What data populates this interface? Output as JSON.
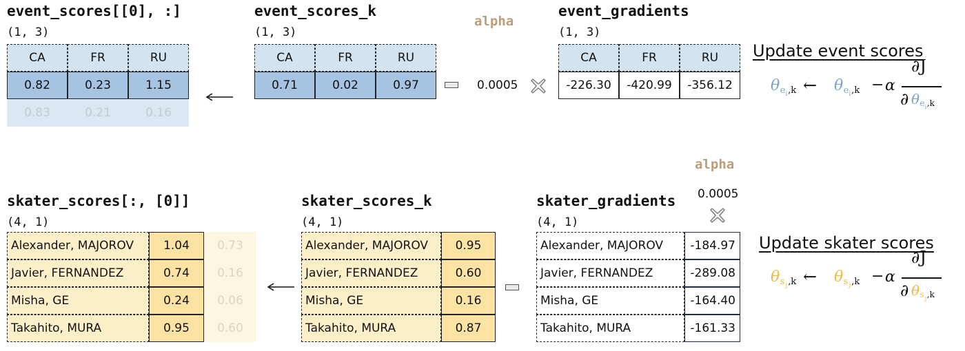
{
  "top": {
    "left": {
      "title": "event_scores[[0], :]",
      "shape": "(1, 3)",
      "headers": [
        "CA",
        "FR",
        "RU"
      ],
      "values": [
        "0.82",
        "0.23",
        "1.15"
      ],
      "prev_values": [
        "0.83",
        "0.21",
        "0.16"
      ]
    },
    "mid": {
      "title": "event_scores_k",
      "shape": "(1, 3)",
      "headers": [
        "CA",
        "FR",
        "RU"
      ],
      "values": [
        "0.71",
        "0.02",
        "0.97"
      ]
    },
    "alpha_label": "alpha",
    "alpha_value": "0.0005",
    "right": {
      "title": "event_gradients",
      "shape": "(1, 3)",
      "headers": [
        "CA",
        "FR",
        "RU"
      ],
      "values": [
        "-226.30",
        "-420.99",
        "-356.12"
      ]
    },
    "heading": "Update event scores",
    "sub": "e",
    "sub_i": "i"
  },
  "bottom": {
    "left": {
      "title": "skater_scores[:, [0]]",
      "shape": "(4, 1)",
      "names": [
        "Alexander, MAJOROV",
        "Javier, FERNANDEZ",
        "Misha, GE",
        "Takahito, MURA"
      ],
      "values": [
        "1.04",
        "0.74",
        "0.24",
        "0.95"
      ],
      "prev_values": [
        "0.73",
        "0.16",
        "0.06",
        "0.60"
      ]
    },
    "mid": {
      "title": "skater_scores_k",
      "shape": "(4, 1)",
      "names": [
        "Alexander, MAJOROV",
        "Javier, FERNANDEZ",
        "Misha, GE",
        "Takahito, MURA"
      ],
      "values": [
        "0.95",
        "0.60",
        "0.16",
        "0.87"
      ]
    },
    "alpha_label": "alpha",
    "alpha_value": "0.0005",
    "right": {
      "title": "skater_gradients",
      "shape": "(4, 1)",
      "names": [
        "Alexander, MAJOROV",
        "Javier, FERNANDEZ",
        "Misha, GE",
        "Takahito, MURA"
      ],
      "values": [
        "-184.97",
        "-289.08",
        "-164.40",
        "-161.33"
      ]
    },
    "heading": "Update skater scores",
    "sub": "s",
    "sub_i": "j"
  },
  "formula": {
    "theta": "θ",
    "k": ",k",
    "arrow": "←",
    "minus": "−",
    "alpha": "α",
    "partial_J": "∂J",
    "partial": "∂"
  },
  "colors": {
    "event_header": "#d4e3f0",
    "event_value": "#a6c4e2",
    "event_faded": "#dbe7f3",
    "skater_light": "#fdf0c8",
    "skater_value": "#fce3a3",
    "skater_faded": "#fdf6e0",
    "blue_accent": "#7da3c8",
    "yellow_accent": "#f1b93d",
    "alpha_color": "#b9a07a",
    "cross_color": "#7a7a7a"
  },
  "icons": {
    "assign_arrow": "left-arrow-icon",
    "minus": "minus-icon",
    "multiply": "multiply-icon"
  }
}
